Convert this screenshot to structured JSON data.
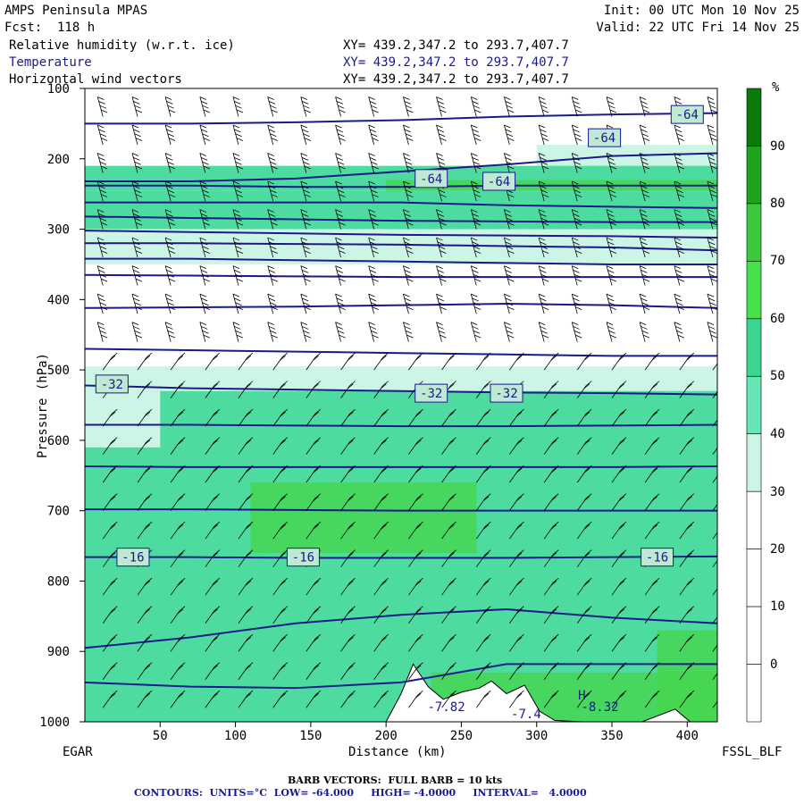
{
  "header": {
    "title": "AMPS Peninsula MPAS",
    "forecast": "Fcst:  118 h",
    "init": "Init: 00 UTC Mon 10 Nov 25",
    "valid": "Valid: 22 UTC Fri 14 Nov 25",
    "fields": [
      {
        "name": "Relative humidity (w.r.t. ice)",
        "xy": "XY= 439.2,347.2 to 293.7,407.7",
        "color": "#000000"
      },
      {
        "name": "Temperature",
        "xy": "XY= 439.2,347.2 to 293.7,407.7",
        "color": "#1a1a8c"
      },
      {
        "name": "Horizontal wind vectors",
        "xy": "XY= 439.2,347.2 to 293.7,407.7",
        "color": "#000000"
      }
    ]
  },
  "axes": {
    "ylabel": "Pressure (hPa)",
    "xlabel": "Distance (km)",
    "left_station": "EGAR",
    "right_station": "FSSL_BLF"
  },
  "footer": {
    "barb": "BARB VECTORS:  FULL BARB = 10 kts",
    "contours": "CONTOURS:  UNITS=°C  LOW= -64.000     HIGH= -4.0000     INTERVAL=   4.0000"
  },
  "colorbar": {
    "unit": "%",
    "labels": [
      "90",
      "80",
      "70",
      "60",
      "50",
      "40",
      "30",
      "20",
      "10",
      "0"
    ]
  },
  "chart_data": {
    "type": "heatmap",
    "title": "AMPS Peninsula MPAS",
    "xlabel": "Distance (km)",
    "ylabel": "Pressure (hPa)",
    "xlim": [
      0,
      420
    ],
    "ylim": [
      1000,
      100
    ],
    "x_ticks": [
      "50",
      "100",
      "150",
      "200",
      "250",
      "300",
      "350",
      "400"
    ],
    "y_ticks": [
      "100",
      "200",
      "300",
      "400",
      "500",
      "600",
      "700",
      "800",
      "900",
      "1000"
    ],
    "colorbar": {
      "unit": "%",
      "levels": [
        -10,
        0,
        10,
        20,
        30,
        40,
        50,
        60,
        70,
        80,
        90,
        100
      ],
      "colors": [
        "#ffffff",
        "#ffffff",
        "#ffffff",
        "#ffffff",
        "#cdf5e6",
        "#66e6b4",
        "#3ad58e",
        "#46e04a",
        "#3cc83c",
        "#1fa31f",
        "#0b7a0b"
      ]
    },
    "rh_bands": [
      {
        "p_top": 180,
        "p_bot": 210,
        "x0": 300,
        "x1": 420,
        "class": "light"
      },
      {
        "p_top": 210,
        "p_bot": 245,
        "x0": 0,
        "x1": 420,
        "class": "mid"
      },
      {
        "p_top": 230,
        "p_bot": 330,
        "x0": 200,
        "x1": 420,
        "class": "green"
      },
      {
        "p_top": 245,
        "p_bot": 300,
        "x0": 0,
        "x1": 420,
        "class": "mid"
      },
      {
        "p_top": 300,
        "p_bot": 350,
        "x0": 0,
        "x1": 420,
        "class": "light"
      },
      {
        "p_top": 495,
        "p_bot": 610,
        "x0": 0,
        "x1": 420,
        "class": "light"
      },
      {
        "p_top": 530,
        "p_bot": 1000,
        "x0": 50,
        "x1": 420,
        "class": "mid"
      },
      {
        "p_top": 610,
        "p_bot": 1000,
        "x0": 0,
        "x1": 420,
        "class": "mid"
      },
      {
        "p_top": 660,
        "p_bot": 760,
        "x0": 110,
        "x1": 260,
        "class": "green"
      },
      {
        "p_top": 870,
        "p_bot": 1000,
        "x0": 380,
        "x1": 420,
        "class": "green"
      },
      {
        "p_top": 930,
        "p_bot": 1000,
        "x0": 230,
        "x1": 420,
        "class": "green"
      }
    ],
    "terrain": [
      [
        200,
        1000
      ],
      [
        210,
        960
      ],
      [
        218,
        918
      ],
      [
        228,
        950
      ],
      [
        238,
        968
      ],
      [
        250,
        958
      ],
      [
        262,
        952
      ],
      [
        270,
        942
      ],
      [
        280,
        960
      ],
      [
        292,
        948
      ],
      [
        302,
        985
      ],
      [
        312,
        998
      ],
      [
        330,
        1000
      ],
      [
        370,
        1000
      ],
      [
        392,
        982
      ],
      [
        402,
        1000
      ],
      [
        420,
        1000
      ]
    ],
    "isotherms": [
      {
        "p": [
          150,
          150,
          148,
          145,
          140,
          137,
          135
        ]
      },
      {
        "p": [
          232,
          232,
          228,
          218,
          208,
          196,
          192
        ]
      },
      {
        "p": [
          238,
          238,
          240,
          240,
          238,
          238,
          238
        ]
      },
      {
        "p": [
          262,
          262,
          262,
          262,
          266,
          268,
          270
        ]
      },
      {
        "p": [
          282,
          284,
          286,
          288,
          289,
          290,
          290
        ]
      },
      {
        "p": [
          302,
          304,
          306,
          308,
          309,
          310,
          312
        ]
      },
      {
        "p": [
          320,
          320,
          321,
          322,
          324,
          326,
          330
        ]
      },
      {
        "p": [
          342,
          342,
          344,
          346,
          348,
          350,
          350
        ]
      },
      {
        "p": [
          365,
          366,
          367,
          368,
          368,
          368,
          368
        ]
      },
      {
        "p": [
          412,
          411,
          410,
          408,
          406,
          408,
          412
        ]
      },
      {
        "p": [
          470,
          472,
          474,
          476,
          478,
          480,
          480
        ]
      },
      {
        "p": [
          522,
          526,
          528,
          530,
          532,
          533,
          535
        ]
      },
      {
        "p": [
          578,
          578,
          579,
          580,
          580,
          579,
          578
        ]
      },
      {
        "p": [
          637,
          638,
          638,
          638,
          638,
          638,
          637
        ]
      },
      {
        "p": [
          698,
          698,
          699,
          700,
          700,
          700,
          700
        ]
      },
      {
        "p": [
          766,
          766,
          767,
          767,
          767,
          766,
          765
        ]
      },
      {
        "p": [
          895,
          880,
          860,
          848,
          840,
          852,
          860
        ]
      },
      {
        "p": [
          944,
          950,
          952,
          944,
          918,
          918,
          918
        ]
      }
    ],
    "isotherm_x": [
      0,
      70,
      140,
      210,
      280,
      350,
      420
    ],
    "contour_labels": [
      {
        "x": 400,
        "p": 137,
        "text": "-64"
      },
      {
        "x": 345,
        "p": 170,
        "text": "-64"
      },
      {
        "x": 230,
        "p": 228,
        "text": "-64"
      },
      {
        "x": 275,
        "p": 232,
        "text": "-64"
      },
      {
        "x": 18,
        "p": 520,
        "text": "-32"
      },
      {
        "x": 230,
        "p": 533,
        "text": "-32"
      },
      {
        "x": 280,
        "p": 533,
        "text": "-32"
      },
      {
        "x": 32,
        "p": 766,
        "text": "-16"
      },
      {
        "x": 145,
        "p": 766,
        "text": "-16"
      },
      {
        "x": 380,
        "p": 766,
        "text": "-16"
      }
    ],
    "extrema": [
      {
        "x": 330,
        "p": 968,
        "text": "H"
      },
      {
        "x": 240,
        "p": 985,
        "text": "-7.82"
      },
      {
        "x": 342,
        "p": 985,
        "text": "-8.32"
      },
      {
        "x": 293,
        "p": 995,
        "text": "-7.4"
      }
    ],
    "barb_columns_km": [
      12,
      35,
      57,
      80,
      102,
      125,
      147,
      170,
      192,
      215,
      237,
      260,
      282,
      305,
      327,
      350,
      372,
      395,
      417
    ],
    "barb_levels_hpa": [
      100,
      140,
      180,
      220,
      260,
      300,
      340,
      380,
      420,
      460,
      500,
      540,
      580,
      620,
      660,
      700,
      740,
      780,
      820,
      860,
      900,
      940,
      980
    ]
  }
}
